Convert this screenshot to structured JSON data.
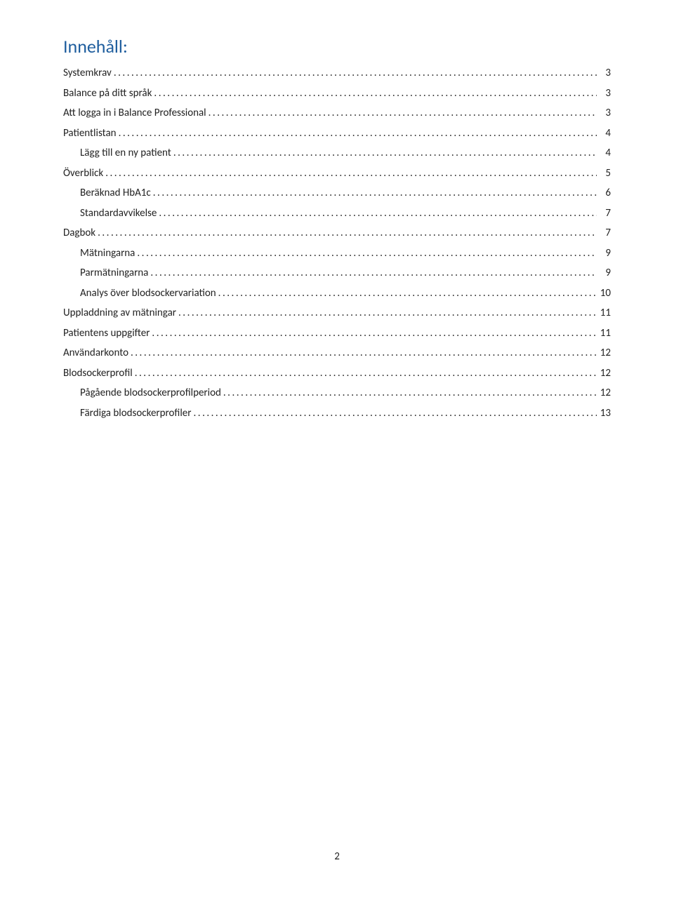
{
  "title": "Innehåll:",
  "title_color": "#1f5e9e",
  "title_fontsize": 26,
  "body_fontsize": 15,
  "text_color": "#222222",
  "background_color": "#ffffff",
  "page_number": "2",
  "toc": [
    {
      "label": "Systemkrav",
      "page": "3",
      "level": 0
    },
    {
      "label": "Balance på ditt språk",
      "page": "3",
      "level": 0
    },
    {
      "label": "Att logga in i Balance Professional",
      "page": "3",
      "level": 0
    },
    {
      "label": "Patientlistan",
      "page": "4",
      "level": 0
    },
    {
      "label": "Lägg till en ny patient",
      "page": "4",
      "level": 1
    },
    {
      "label": "Överblick",
      "page": "5",
      "level": 0
    },
    {
      "label": "Beräknad HbA1c",
      "page": "6",
      "level": 1
    },
    {
      "label": "Standardavvikelse",
      "page": "7",
      "level": 1
    },
    {
      "label": "Dagbok",
      "page": "7",
      "level": 0
    },
    {
      "label": "Mätningarna",
      "page": "9",
      "level": 1
    },
    {
      "label": "Parmätningarna",
      "page": "9",
      "level": 1
    },
    {
      "label": "Analys över blodsockervariation",
      "page": "10",
      "level": 1
    },
    {
      "label": "Uppladdning av mätningar",
      "page": "11",
      "level": 0
    },
    {
      "label": "Patientens uppgifter",
      "page": "11",
      "level": 0
    },
    {
      "label": "Användarkonto",
      "page": "12",
      "level": 0
    },
    {
      "label": "Blodsockerprofil",
      "page": "12",
      "level": 0
    },
    {
      "label": "Pågående blodsockerprofilperiod",
      "page": "12",
      "level": 1
    },
    {
      "label": "Färdiga blodsockerprofiler",
      "page": "13",
      "level": 1
    }
  ]
}
